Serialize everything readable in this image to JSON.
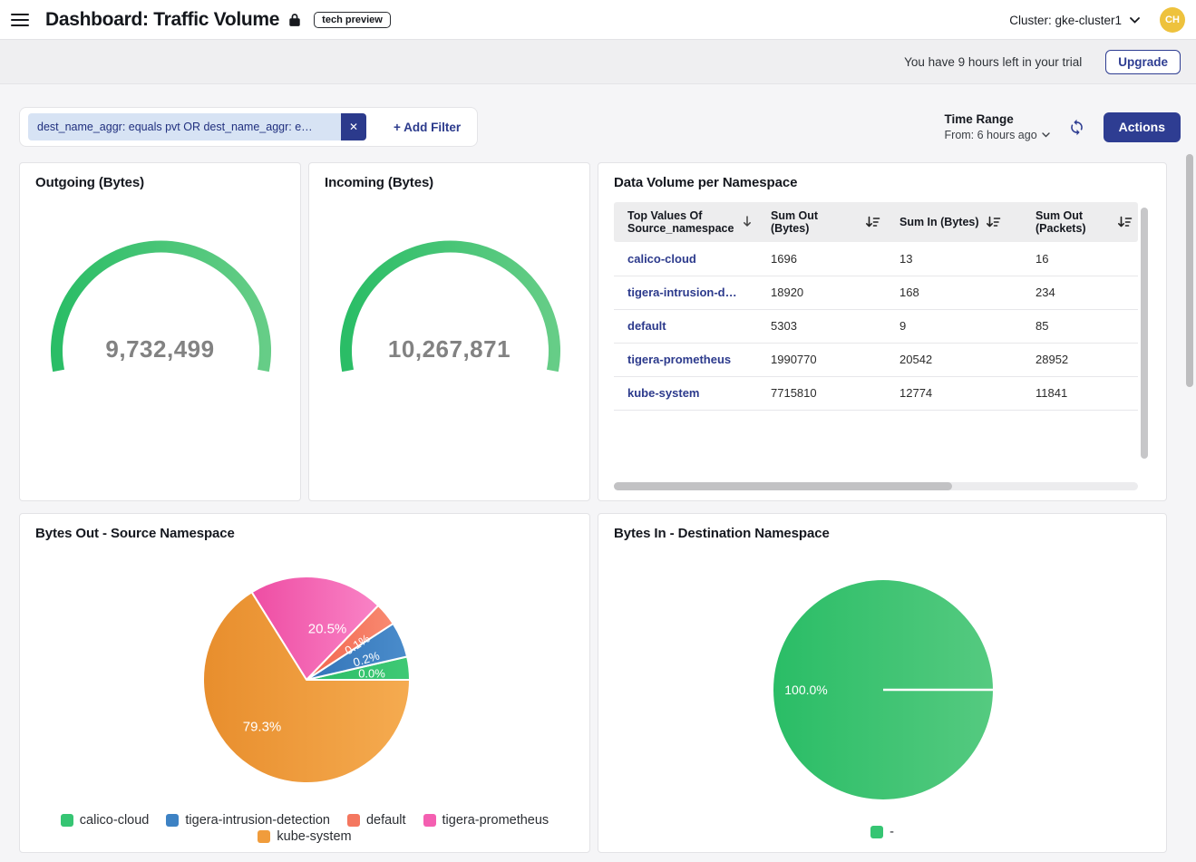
{
  "header": {
    "title": "Dashboard: Traffic Volume",
    "tech_preview_badge": "tech preview",
    "cluster_selector": "Cluster: gke-cluster1",
    "avatar_initials": "CH"
  },
  "trial_banner": {
    "message": "You have 9 hours left in your trial",
    "upgrade_label": "Upgrade"
  },
  "filter_bar": {
    "filter_chip": "dest_name_aggr: equals pvt OR dest_name_aggr: e…",
    "remove_filter_icon": "close-icon",
    "add_filter_label": "+ Add Filter",
    "time_range_label": "Time Range",
    "time_range_value": "From: 6 hours ago",
    "actions_label": "Actions"
  },
  "colors": {
    "accent_navy": "#2e3d92",
    "chip_bg": "#d7e3f4",
    "avatar_gold": "#eec23d",
    "gauge_value_gray": "#828282",
    "page_bg": "#f5f5f7"
  },
  "chart_data": [
    {
      "type": "gauge",
      "title": "Outgoing (Bytes)",
      "value": 9732499,
      "display_value": "9,732,499",
      "color_start": "#2abd66",
      "color_end": "#66cd87"
    },
    {
      "type": "gauge",
      "title": "Incoming (Bytes)",
      "value": 10267871,
      "display_value": "10,267,871",
      "color_start": "#2abd66",
      "color_end": "#66cd87"
    },
    {
      "type": "table",
      "title": "Data Volume per Namespace",
      "columns": [
        {
          "label": "Top Values Of Source_namespace",
          "sort_icon": "arrow-down-icon"
        },
        {
          "label": "Sum Out (Bytes)",
          "sort_icon": "sort-amount-down-icon"
        },
        {
          "label": "Sum In (Bytes)",
          "sort_icon": "sort-amount-down-icon"
        },
        {
          "label": "Sum Out (Packets)",
          "sort_icon": "sort-amount-down-icon"
        }
      ],
      "rows": [
        [
          "calico-cloud",
          "1696",
          "13",
          "16"
        ],
        [
          "tigera-intrusion-d…",
          "18920",
          "168",
          "234"
        ],
        [
          "default",
          "5303",
          "9",
          "85"
        ],
        [
          "tigera-prometheus",
          "1990770",
          "20542",
          "28952"
        ],
        [
          "kube-system",
          "7715810",
          "12774",
          "11841"
        ]
      ]
    },
    {
      "type": "pie",
      "title": "Bytes Out - Source Namespace",
      "r": 114,
      "slices": [
        {
          "name": "calico-cloud",
          "value_pct": 0.0,
          "start_deg": 0,
          "end_deg": 13,
          "color_start": "#2abd66",
          "color_end": "#3fc975",
          "legend_color": "#36c573"
        },
        {
          "name": "tigera-intrusion-detection",
          "value_pct": 0.2,
          "start_deg": 13,
          "end_deg": 33,
          "color_start": "#3374b8",
          "color_end": "#4a8ccb",
          "legend_color": "#3d82c4"
        },
        {
          "name": "default",
          "value_pct": 0.1,
          "start_deg": 33,
          "end_deg": 46,
          "color_start": "#f2654e",
          "color_end": "#f88a71",
          "legend_color": "#f4775f"
        },
        {
          "name": "tigera-prometheus",
          "value_pct": 20.5,
          "start_deg": 46,
          "end_deg": 122,
          "color_start": "#ee4da3",
          "color_end": "#f983c6",
          "legend_color": "#f45fb1"
        },
        {
          "name": "kube-system",
          "value_pct": 79.3,
          "start_deg": 122,
          "end_deg": 360,
          "color_start": "#e88e2d",
          "color_end": "#f5ab50",
          "legend_color": "#f09c3c"
        }
      ],
      "labels": [
        {
          "text": "79.3%",
          "x": -49,
          "y": 51,
          "size": 15,
          "rot": 0
        },
        {
          "text": "20.5%",
          "x": 23,
          "y": -57,
          "size": 15,
          "rot": 0
        },
        {
          "text": "0.1%",
          "x": 56,
          "y": -39,
          "size": 13,
          "rot": -33
        },
        {
          "text": "0.2%",
          "x": 66,
          "y": -23,
          "size": 13,
          "rot": -17
        },
        {
          "text": "0.0%",
          "x": 72,
          "y": -7,
          "size": 13,
          "rot": 0
        }
      ],
      "legend_rows": [
        [
          0,
          1,
          2,
          3
        ],
        [
          4
        ]
      ]
    },
    {
      "type": "pie",
      "title": "Bytes In - Destination Namespace",
      "r": 121,
      "slices": [
        {
          "name": "-",
          "value_pct": 100.0,
          "start_deg": 0,
          "end_deg": 360,
          "color_start": "#2abd66",
          "color_end": "#55ca80",
          "legend_color": "#36c573"
        }
      ],
      "labels": [
        {
          "text": "100.0%",
          "x": -85,
          "y": 0,
          "size": 14,
          "rot": 0
        }
      ],
      "legend_rows": [
        [
          0
        ]
      ]
    }
  ]
}
